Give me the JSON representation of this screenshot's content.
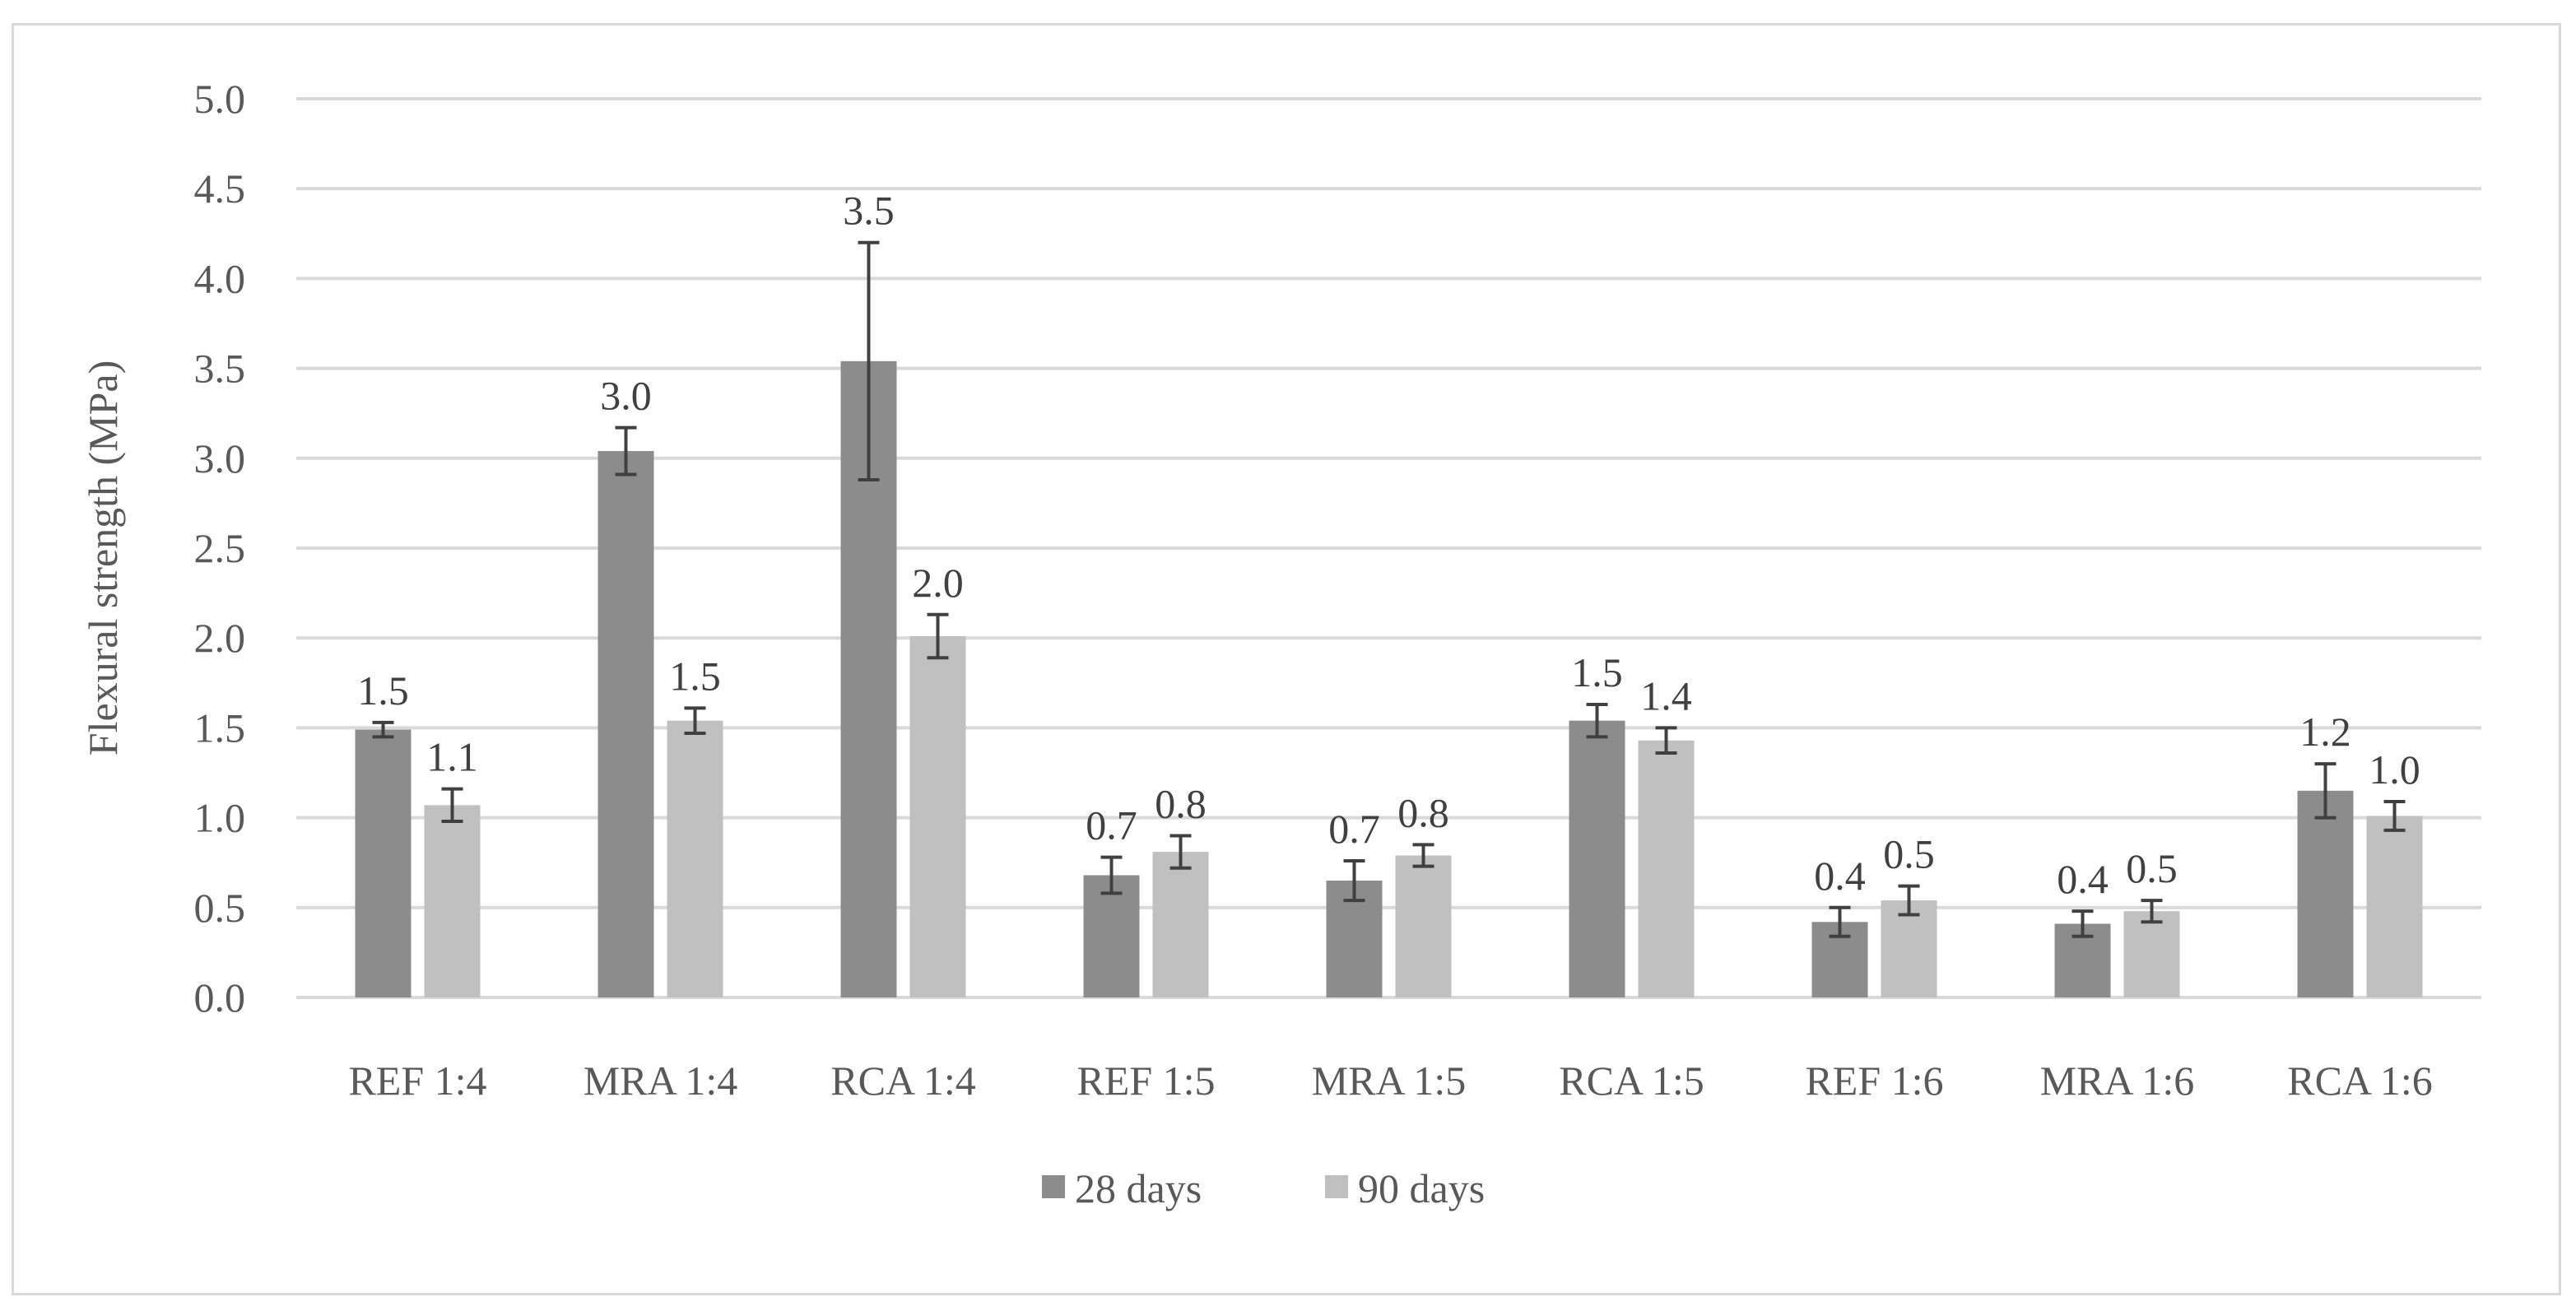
{
  "chart_data": {
    "type": "bar",
    "title": "",
    "xlabel": "",
    "ylabel": "Flexural strength (MPa)",
    "ylim": [
      0,
      5
    ],
    "yticks": [
      "0.0",
      "0.5",
      "1.0",
      "1.5",
      "2.0",
      "2.5",
      "3.0",
      "3.5",
      "4.0",
      "4.5",
      "5.0"
    ],
    "grid": true,
    "legend_position": "bottom",
    "categories": [
      "REF 1:4",
      "MRA 1:4",
      "RCA 1:4",
      "REF 1:5",
      "MRA 1:5",
      "RCA 1:5",
      "REF 1:6",
      "MRA 1:6",
      "RCA 1:6"
    ],
    "series": [
      {
        "name": "28 days",
        "color": "#8c8c8c",
        "values": [
          1.49,
          3.04,
          3.54,
          0.68,
          0.65,
          1.54,
          0.42,
          0.41,
          1.15
        ],
        "labels": [
          "1.5",
          "3.0",
          "3.5",
          "0.7",
          "0.7",
          "1.5",
          "0.4",
          "0.4",
          "1.2"
        ],
        "error": [
          0.04,
          0.13,
          0.66,
          0.1,
          0.11,
          0.09,
          0.08,
          0.07,
          0.15
        ]
      },
      {
        "name": "90 days",
        "color": "#c0c0c0",
        "values": [
          1.07,
          1.54,
          2.01,
          0.81,
          0.79,
          1.43,
          0.54,
          0.48,
          1.01
        ],
        "labels": [
          "1.1",
          "1.5",
          "2.0",
          "0.8",
          "0.8",
          "1.4",
          "0.5",
          "0.5",
          "1.0"
        ],
        "error": [
          0.09,
          0.07,
          0.12,
          0.09,
          0.06,
          0.07,
          0.08,
          0.06,
          0.08
        ]
      }
    ]
  }
}
